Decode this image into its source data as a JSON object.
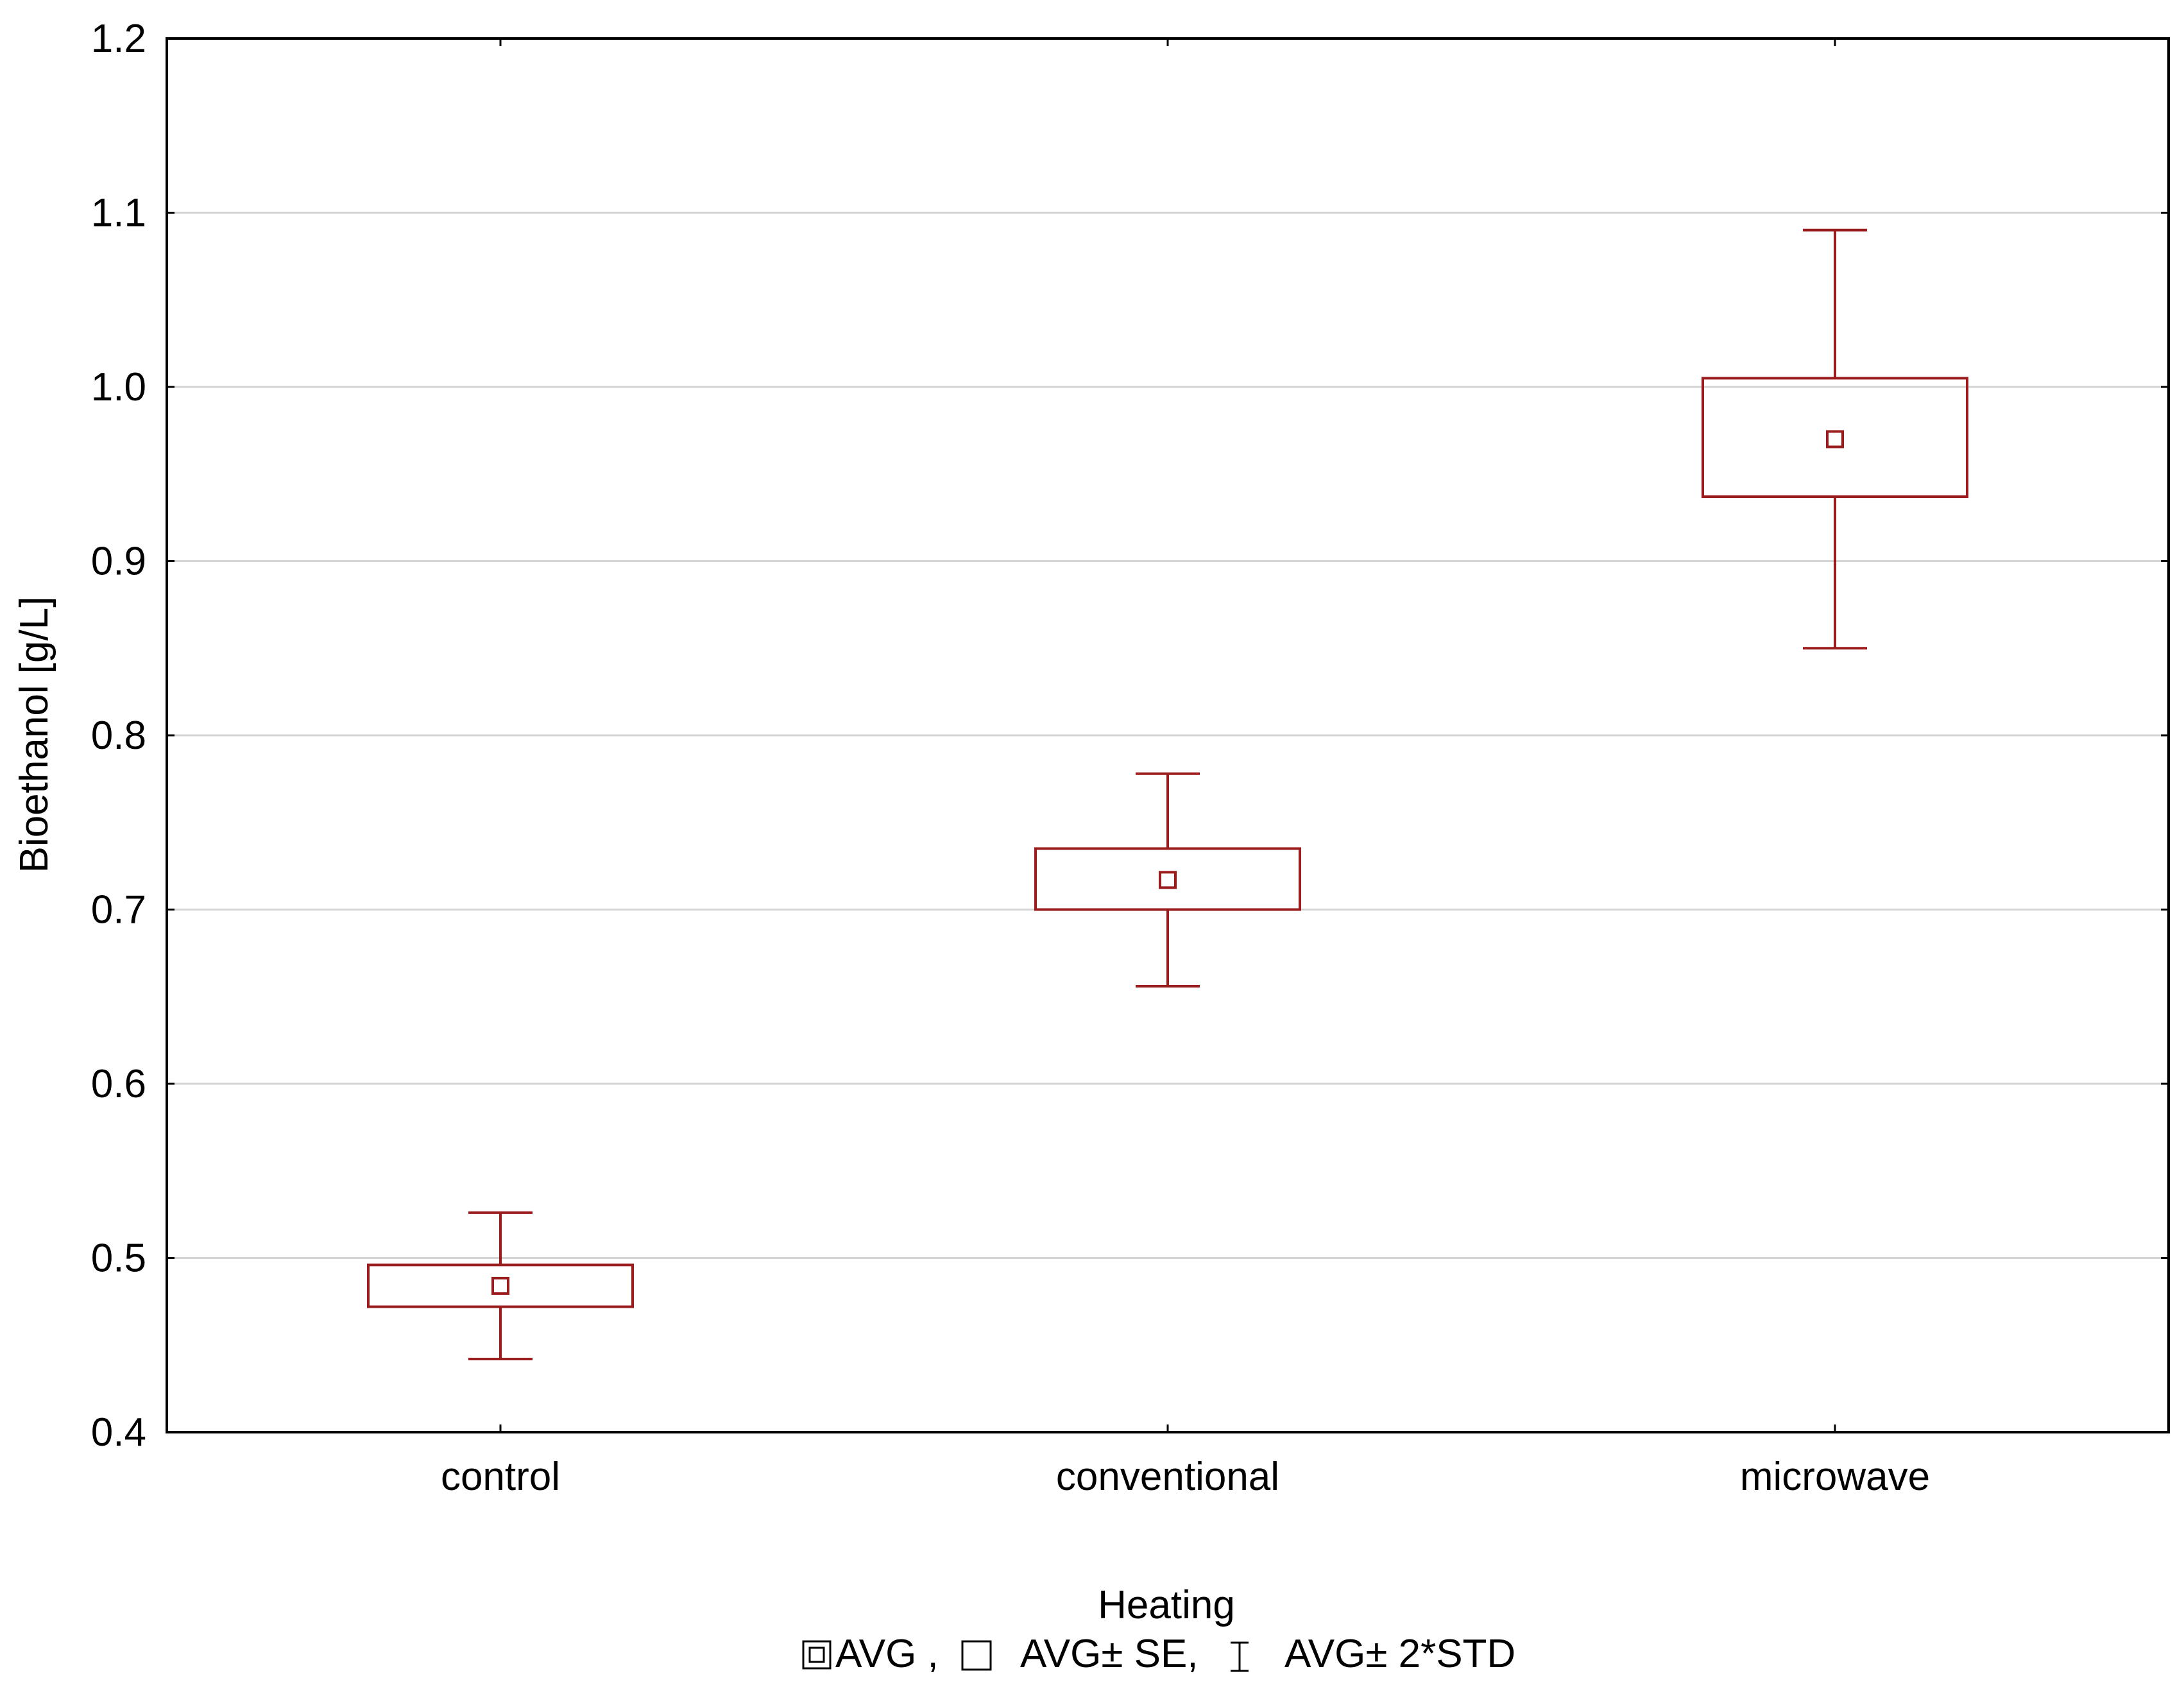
{
  "chart_data": {
    "type": "box",
    "xlabel": "Heating",
    "ylabel": "Bioethanol [g/L]",
    "ylim": [
      0.4,
      1.2
    ],
    "yticks": [
      0.4,
      0.5,
      0.6,
      0.7,
      0.8,
      0.9,
      1.0,
      1.1,
      1.2
    ],
    "ytick_labels": [
      "0.4",
      "0.5",
      "0.6",
      "0.7",
      "0.8",
      "0.9",
      "1.0",
      "1.1",
      "1.2"
    ],
    "grid": true,
    "categories": [
      "control",
      "conventional",
      "microwave"
    ],
    "series": [
      {
        "name": "control",
        "avg": 0.484,
        "se_low": 0.472,
        "se_high": 0.496,
        "std2_low": 0.442,
        "std2_high": 0.526
      },
      {
        "name": "conventional",
        "avg": 0.717,
        "se_low": 0.7,
        "se_high": 0.735,
        "std2_low": 0.656,
        "std2_high": 0.778
      },
      {
        "name": "microwave",
        "avg": 0.97,
        "se_low": 0.937,
        "se_high": 1.005,
        "std2_low": 0.85,
        "std2_high": 1.09
      }
    ],
    "legend": {
      "placement": "bottom",
      "avg_label": "AVG ,",
      "se_label": "AVG± SE,",
      "std_label": "AVG± 2*STD"
    },
    "colors": {
      "box": "#9b1c1c",
      "axis": "#000000",
      "grid": "#d4d4d4"
    }
  }
}
